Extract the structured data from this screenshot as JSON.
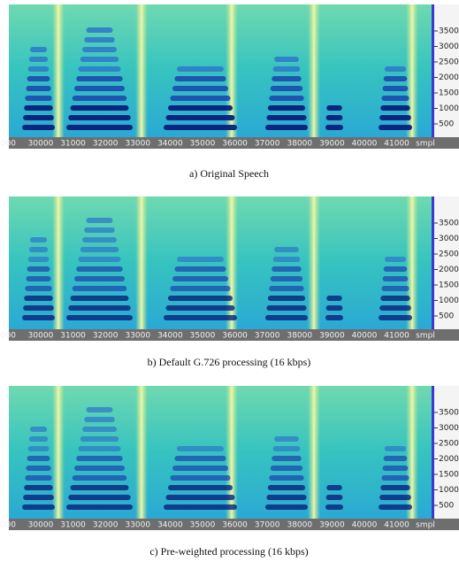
{
  "panels": [
    {
      "caption": "a) Original Speech",
      "xticks": [
        "000",
        "30000",
        "31000",
        "32000",
        "33000",
        "34000",
        "35000",
        "36000",
        "37000",
        "38000",
        "39000",
        "40000",
        "41000",
        "smpl"
      ],
      "yticks": [
        "3500",
        "3000",
        "2500",
        "2000",
        "1500",
        "1000",
        "500"
      ]
    },
    {
      "caption": "b) Default G.726 processing (16 kbps)",
      "xticks": [
        "000",
        "30000",
        "31000",
        "32000",
        "33000",
        "34000",
        "35000",
        "36000",
        "37000",
        "38000",
        "39000",
        "40000",
        "41000",
        "smpl"
      ],
      "yticks": [
        "3500",
        "3000",
        "2500",
        "2000",
        "1500",
        "1000",
        "500"
      ]
    },
    {
      "caption": "c) Pre-weighted processing (16 kbps)",
      "xticks": [
        "000",
        "30000",
        "31000",
        "32000",
        "33000",
        "34000",
        "35000",
        "36000",
        "37000",
        "38000",
        "39000",
        "40000",
        "41000",
        "smpl"
      ],
      "yticks": [
        "3500",
        "3000",
        "2500",
        "2000",
        "1500",
        "1000",
        "500"
      ]
    }
  ]
}
